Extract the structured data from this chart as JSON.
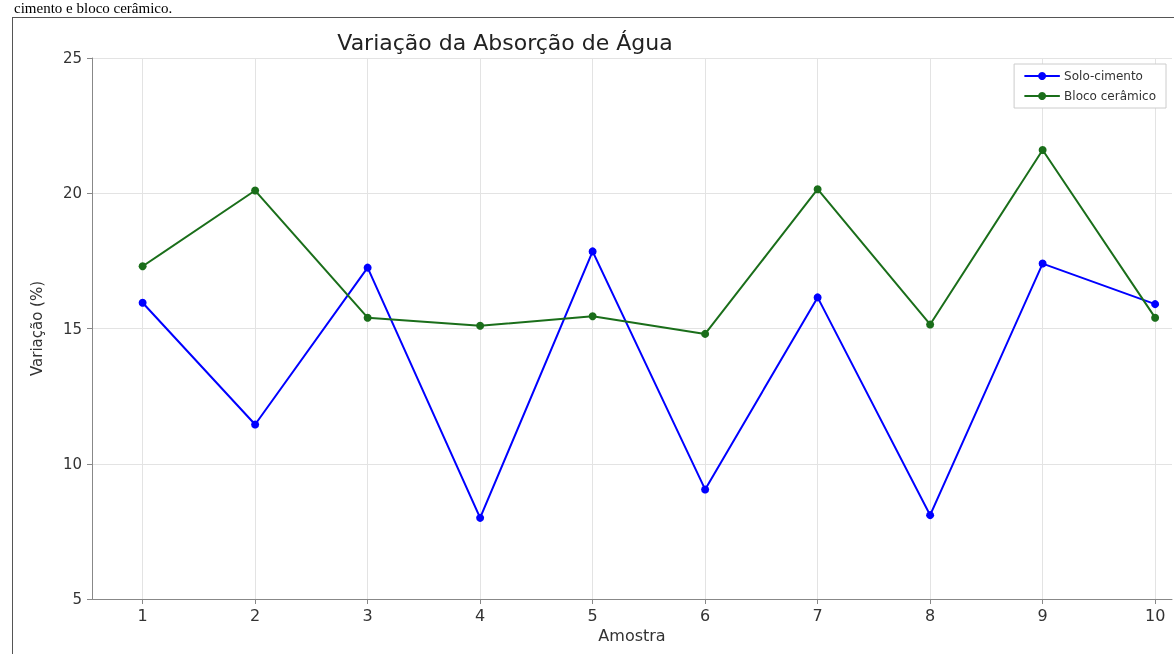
{
  "chart_data": {
    "type": "line",
    "title": "Variação da Absorção de Água",
    "xlabel": "Amostra",
    "ylabel": "Variação (%)",
    "annotations": [
      "cimento e bloco cerâmico."
    ],
    "x": [
      1,
      2,
      3,
      4,
      5,
      6,
      7,
      8,
      9,
      10
    ],
    "series": [
      {
        "name": "Solo-cimento",
        "color": "#0000ff",
        "values": [
          15.95,
          11.45,
          17.25,
          8.0,
          17.85,
          9.05,
          16.15,
          8.1,
          17.4,
          15.9
        ]
      },
      {
        "name": "Bloco cerâmico",
        "color": "#1a6e1a",
        "values": [
          17.3,
          20.1,
          15.4,
          15.1,
          15.45,
          14.8,
          20.15,
          15.15,
          21.6,
          15.4
        ]
      }
    ],
    "xlim": [
      0.55,
      10.15
    ],
    "xticks": [
      1,
      2,
      3,
      4,
      5,
      6,
      7,
      8,
      9,
      10
    ],
    "ylim": [
      5,
      25
    ],
    "yticks": [
      5,
      10,
      15,
      20,
      25
    ],
    "grid": true,
    "legend": "top right",
    "marker": "circle",
    "line_style": "solid"
  }
}
